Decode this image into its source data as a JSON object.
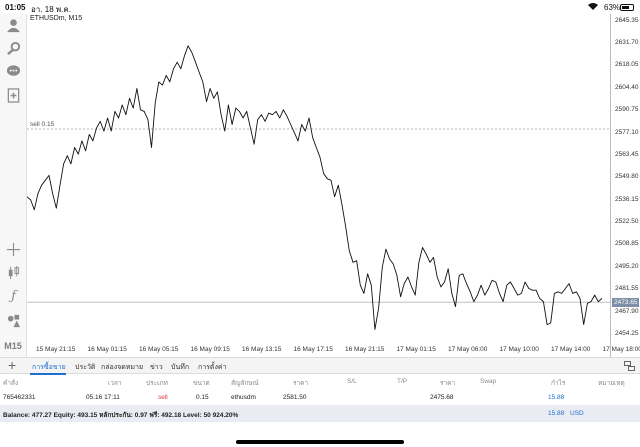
{
  "status_bar": {
    "time": "01:05",
    "date": "อา. 18 พ.ค.",
    "battery": "63%"
  },
  "toolbar": {
    "icons": [
      "account-icon",
      "settings-download-icon",
      "chat-icon",
      "add-document-icon",
      "crosshair-icon",
      "candlestick-icon",
      "function-icon",
      "objects-icon"
    ],
    "timeframe": "M15"
  },
  "chart": {
    "symbol_label": "ETHUSDm, M15",
    "sell_line_label": "sell 0.15",
    "current_price": "2473.65",
    "colors": {
      "line": "#111111",
      "tag": "#7c8ea8",
      "order_line": "#9a9a9a"
    }
  },
  "chart_data": {
    "type": "line",
    "series": [
      {
        "values": [
          2538,
          2536,
          2530,
          2540,
          2545,
          2548,
          2551,
          2540,
          2531,
          2545,
          2558,
          2563,
          2558,
          2568,
          2564,
          2572,
          2566,
          2576,
          2572,
          2580,
          2584,
          2578,
          2586,
          2578,
          2590,
          2586,
          2594,
          2588,
          2598,
          2592,
          2604,
          2591,
          2590,
          2585,
          2568,
          2595,
          2608,
          2606,
          2612,
          2608,
          2616,
          2620,
          2616,
          2624,
          2630,
          2626,
          2620,
          2614,
          2608,
          2596,
          2604,
          2598,
          2602,
          2588,
          2578,
          2594,
          2582,
          2592,
          2590,
          2586,
          2590,
          2580,
          2570,
          2585,
          2588,
          2584,
          2589,
          2588,
          2590,
          2586,
          2591,
          2587,
          2582,
          2577,
          2572,
          2582,
          2578,
          2586,
          2574,
          2568,
          2562,
          2552,
          2549,
          2548,
          2538,
          2545,
          2533,
          2520,
          2505,
          2498,
          2499,
          2484,
          2479,
          2491,
          2484,
          2457,
          2470,
          2495,
          2506,
          2500,
          2497,
          2490,
          2477,
          2485,
          2489,
          2483,
          2478,
          2498,
          2507,
          2503,
          2498,
          2501,
          2489,
          2483,
          2486,
          2494,
          2479,
          2471,
          2490,
          2491,
          2485,
          2480,
          2474,
          2478,
          2484,
          2478,
          2482,
          2487,
          2486,
          2479,
          2474,
          2484,
          2486,
          2482,
          2478,
          2479,
          2486,
          2482,
          2481,
          2481,
          2476,
          2474,
          2460,
          2461,
          2479,
          2480,
          2479,
          2482,
          2485,
          2479,
          2480,
          2476,
          2460,
          2473,
          2474,
          2478,
          2474,
          2476
        ]
      }
    ],
    "y_ticks": [
      "2645.35",
      "2631.70",
      "2618.05",
      "2604.40",
      "2590.75",
      "2577.10",
      "2563.45",
      "2549.80",
      "2536.15",
      "2522.50",
      "2508.85",
      "2495.20",
      "2481.55",
      "2467.90",
      "2454.25"
    ],
    "ylim": [
      2450.6,
      2648.2
    ],
    "x_ticks": [
      "15 May 21:15",
      "16 May 01:15",
      "16 May 05:15",
      "16 May 09:15",
      "16 May 13:15",
      "16 May 17:15",
      "16 May 21:15",
      "17 May 01:15",
      "17 May 06:00",
      "17 May 10:00",
      "17 May 14:00",
      "17 May 18:00"
    ],
    "order_line_price": 2579.3,
    "current_price_value": 2473.65,
    "grid": false
  },
  "tabs": {
    "items": [
      "การซื้อขาย",
      "ประวัติ",
      "กล่องจดหมาย",
      "ข่าว",
      "บันทึก",
      "การตั้งค่า"
    ],
    "active": 0
  },
  "table": {
    "headers": [
      "คำสั่ง",
      "เวลา",
      "ประเภท",
      "ขนาด",
      "สัญลักษณ์",
      "ราคา",
      "S/L",
      "T/P",
      "ราคา",
      "Swap",
      "กำไร",
      "หมายเหตุ"
    ],
    "row": {
      "order": "765462331",
      "time": "05.16 17:11",
      "type": "sell",
      "size": "0.15",
      "symbol": "ethusdm",
      "price": "2581.50",
      "current_price": "2475.68",
      "profit": "15.88"
    }
  },
  "balance": {
    "text": "Balance: 477.27 Equity: 493.15 หลักประกัน: 0.97 ฟรี: 492.18 Level: 50 924.20%",
    "amount": "15.88",
    "currency": "USD"
  }
}
